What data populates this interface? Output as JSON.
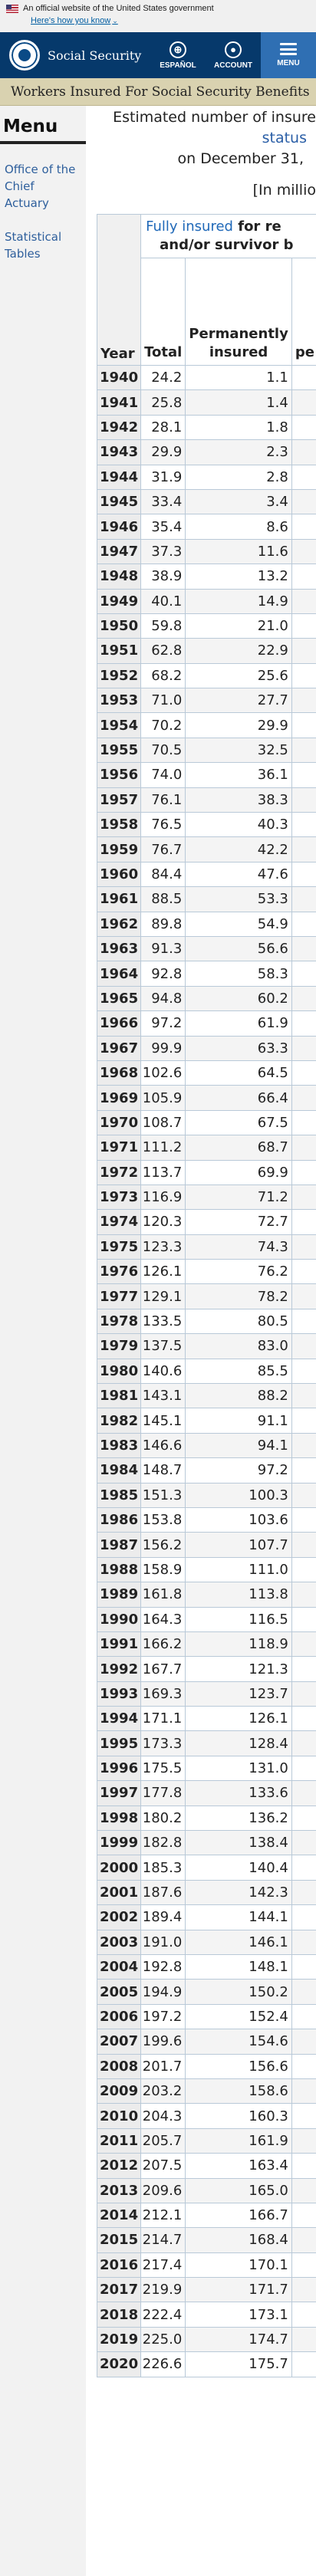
{
  "gov_banner": {
    "text": "An official website of the United States government",
    "link": "Here's how you know"
  },
  "header": {
    "brand": "Social Security",
    "buttons": {
      "espanol": "ESPAÑOL",
      "account": "ACCOUNT",
      "menu": "MENU"
    }
  },
  "page_title": "Workers Insured For Social Security Benefits",
  "sidebar": {
    "heading": "Menu",
    "links": [
      "Office of the Chief Actuary",
      "Statistical Tables"
    ]
  },
  "caption": {
    "line1": "Estimated number of insure",
    "line2": "status",
    "line3": "on December 31,",
    "units": "[In millio"
  },
  "table": {
    "top_header_highlight": "Fully insured",
    "top_header_rest": " for re",
    "top_header_line2": "and/or survivor b",
    "col_year": "Year",
    "col_total": "Total",
    "col_perm_line1": "Permanently",
    "col_perm_line2": "insured",
    "col_cut": "pe",
    "rows": [
      {
        "year": "1940",
        "total": "24.2",
        "perm": "1.1"
      },
      {
        "year": "1941",
        "total": "25.8",
        "perm": "1.4"
      },
      {
        "year": "1942",
        "total": "28.1",
        "perm": "1.8"
      },
      {
        "year": "1943",
        "total": "29.9",
        "perm": "2.3"
      },
      {
        "year": "1944",
        "total": "31.9",
        "perm": "2.8"
      },
      {
        "year": "1945",
        "total": "33.4",
        "perm": "3.4"
      },
      {
        "year": "1946",
        "total": "35.4",
        "perm": "8.6"
      },
      {
        "year": "1947",
        "total": "37.3",
        "perm": "11.6"
      },
      {
        "year": "1948",
        "total": "38.9",
        "perm": "13.2"
      },
      {
        "year": "1949",
        "total": "40.1",
        "perm": "14.9"
      },
      {
        "year": "1950",
        "total": "59.8",
        "perm": "21.0"
      },
      {
        "year": "1951",
        "total": "62.8",
        "perm": "22.9"
      },
      {
        "year": "1952",
        "total": "68.2",
        "perm": "25.6"
      },
      {
        "year": "1953",
        "total": "71.0",
        "perm": "27.7"
      },
      {
        "year": "1954",
        "total": "70.2",
        "perm": "29.9"
      },
      {
        "year": "1955",
        "total": "70.5",
        "perm": "32.5"
      },
      {
        "year": "1956",
        "total": "74.0",
        "perm": "36.1"
      },
      {
        "year": "1957",
        "total": "76.1",
        "perm": "38.3"
      },
      {
        "year": "1958",
        "total": "76.5",
        "perm": "40.3"
      },
      {
        "year": "1959",
        "total": "76.7",
        "perm": "42.2"
      },
      {
        "year": "1960",
        "total": "84.4",
        "perm": "47.6"
      },
      {
        "year": "1961",
        "total": "88.5",
        "perm": "53.3"
      },
      {
        "year": "1962",
        "total": "89.8",
        "perm": "54.9"
      },
      {
        "year": "1963",
        "total": "91.3",
        "perm": "56.6"
      },
      {
        "year": "1964",
        "total": "92.8",
        "perm": "58.3"
      },
      {
        "year": "1965",
        "total": "94.8",
        "perm": "60.2"
      },
      {
        "year": "1966",
        "total": "97.2",
        "perm": "61.9"
      },
      {
        "year": "1967",
        "total": "99.9",
        "perm": "63.3"
      },
      {
        "year": "1968",
        "total": "102.6",
        "perm": "64.5"
      },
      {
        "year": "1969",
        "total": "105.9",
        "perm": "66.4"
      },
      {
        "year": "1970",
        "total": "108.7",
        "perm": "67.5"
      },
      {
        "year": "1971",
        "total": "111.2",
        "perm": "68.7"
      },
      {
        "year": "1972",
        "total": "113.7",
        "perm": "69.9"
      },
      {
        "year": "1973",
        "total": "116.9",
        "perm": "71.2"
      },
      {
        "year": "1974",
        "total": "120.3",
        "perm": "72.7"
      },
      {
        "year": "1975",
        "total": "123.3",
        "perm": "74.3"
      },
      {
        "year": "1976",
        "total": "126.1",
        "perm": "76.2"
      },
      {
        "year": "1977",
        "total": "129.1",
        "perm": "78.2"
      },
      {
        "year": "1978",
        "total": "133.5",
        "perm": "80.5"
      },
      {
        "year": "1979",
        "total": "137.5",
        "perm": "83.0"
      },
      {
        "year": "1980",
        "total": "140.6",
        "perm": "85.5"
      },
      {
        "year": "1981",
        "total": "143.1",
        "perm": "88.2"
      },
      {
        "year": "1982",
        "total": "145.1",
        "perm": "91.1"
      },
      {
        "year": "1983",
        "total": "146.6",
        "perm": "94.1"
      },
      {
        "year": "1984",
        "total": "148.7",
        "perm": "97.2"
      },
      {
        "year": "1985",
        "total": "151.3",
        "perm": "100.3"
      },
      {
        "year": "1986",
        "total": "153.8",
        "perm": "103.6"
      },
      {
        "year": "1987",
        "total": "156.2",
        "perm": "107.7"
      },
      {
        "year": "1988",
        "total": "158.9",
        "perm": "111.0"
      },
      {
        "year": "1989",
        "total": "161.8",
        "perm": "113.8"
      },
      {
        "year": "1990",
        "total": "164.3",
        "perm": "116.5"
      },
      {
        "year": "1991",
        "total": "166.2",
        "perm": "118.9"
      },
      {
        "year": "1992",
        "total": "167.7",
        "perm": "121.3"
      },
      {
        "year": "1993",
        "total": "169.3",
        "perm": "123.7"
      },
      {
        "year": "1994",
        "total": "171.1",
        "perm": "126.1"
      },
      {
        "year": "1995",
        "total": "173.3",
        "perm": "128.4"
      },
      {
        "year": "1996",
        "total": "175.5",
        "perm": "131.0"
      },
      {
        "year": "1997",
        "total": "177.8",
        "perm": "133.6"
      },
      {
        "year": "1998",
        "total": "180.2",
        "perm": "136.2"
      },
      {
        "year": "1999",
        "total": "182.8",
        "perm": "138.4"
      },
      {
        "year": "2000",
        "total": "185.3",
        "perm": "140.4"
      },
      {
        "year": "2001",
        "total": "187.6",
        "perm": "142.3"
      },
      {
        "year": "2002",
        "total": "189.4",
        "perm": "144.1"
      },
      {
        "year": "2003",
        "total": "191.0",
        "perm": "146.1"
      },
      {
        "year": "2004",
        "total": "192.8",
        "perm": "148.1"
      },
      {
        "year": "2005",
        "total": "194.9",
        "perm": "150.2"
      },
      {
        "year": "2006",
        "total": "197.2",
        "perm": "152.4"
      },
      {
        "year": "2007",
        "total": "199.6",
        "perm": "154.6"
      },
      {
        "year": "2008",
        "total": "201.7",
        "perm": "156.6"
      },
      {
        "year": "2009",
        "total": "203.2",
        "perm": "158.6"
      },
      {
        "year": "2010",
        "total": "204.3",
        "perm": "160.3"
      },
      {
        "year": "2011",
        "total": "205.7",
        "perm": "161.9"
      },
      {
        "year": "2012",
        "total": "207.5",
        "perm": "163.4"
      },
      {
        "year": "2013",
        "total": "209.6",
        "perm": "165.0"
      },
      {
        "year": "2014",
        "total": "212.1",
        "perm": "166.7"
      },
      {
        "year": "2015",
        "total": "214.7",
        "perm": "168.4"
      },
      {
        "year": "2016",
        "total": "217.4",
        "perm": "170.1"
      },
      {
        "year": "2017",
        "total": "219.9",
        "perm": "171.7"
      },
      {
        "year": "2018",
        "total": "222.4",
        "perm": "173.1"
      },
      {
        "year": "2019",
        "total": "225.0",
        "perm": "174.7"
      },
      {
        "year": "2020",
        "total": "226.6",
        "perm": "175.7"
      }
    ]
  }
}
